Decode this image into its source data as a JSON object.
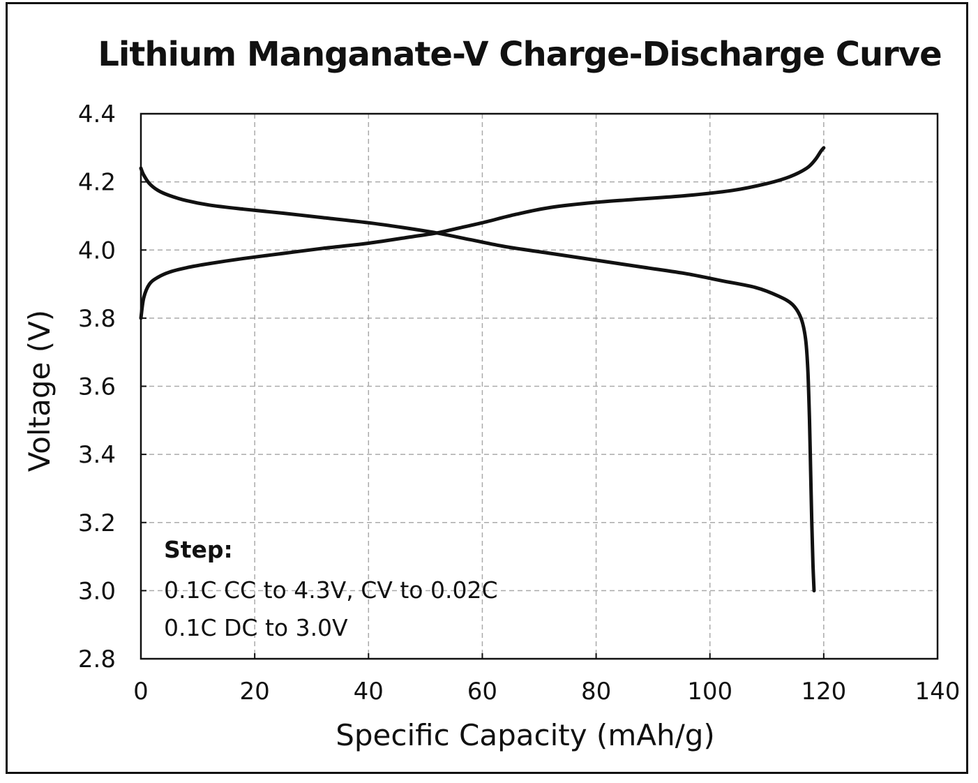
{
  "chart_data": {
    "type": "line",
    "title": "Lithium Manganate-V Charge-Discharge Curve",
    "xlabel": "Specific Capacity (mAh/g)",
    "ylabel": "Voltage (V)",
    "xlim": [
      0,
      140
    ],
    "ylim": [
      2.8,
      4.4
    ],
    "x_ticks": [
      "0",
      "20",
      "40",
      "60",
      "80",
      "100",
      "120",
      "140"
    ],
    "y_ticks": [
      "2.8",
      "3.0",
      "3.2",
      "3.4",
      "3.6",
      "3.8",
      "4.0",
      "4.2",
      "4.4"
    ],
    "grid": true,
    "grid_style": "dashed",
    "line_color": "#111111",
    "series": [
      {
        "x": [
          0,
          0.5,
          1.5,
          3,
          5,
          8,
          12,
          18,
          25,
          32,
          40,
          48,
          52,
          56,
          60,
          66,
          72,
          80,
          88,
          96,
          104,
          110,
          114,
          117,
          118.5,
          119.5,
          120
        ],
        "y": [
          3.8,
          3.86,
          3.9,
          3.92,
          3.935,
          3.948,
          3.96,
          3.975,
          3.99,
          4.005,
          4.02,
          4.04,
          4.05,
          4.065,
          4.08,
          4.105,
          4.125,
          4.14,
          4.15,
          4.16,
          4.175,
          4.195,
          4.215,
          4.24,
          4.265,
          4.29,
          4.3
        ]
      },
      {
        "x": [
          0,
          0.5,
          1.5,
          3,
          5,
          8,
          12,
          18,
          25,
          32,
          40,
          46,
          52,
          58,
          64,
          72,
          80,
          88,
          96,
          102,
          108,
          112,
          114.5,
          116,
          116.8,
          117.2,
          117.5,
          117.7,
          117.9,
          118.1,
          118.3
        ],
        "y": [
          4.24,
          4.22,
          4.195,
          4.175,
          4.16,
          4.145,
          4.132,
          4.12,
          4.108,
          4.095,
          4.08,
          4.066,
          4.05,
          4.03,
          4.01,
          3.99,
          3.97,
          3.95,
          3.93,
          3.91,
          3.89,
          3.865,
          3.84,
          3.8,
          3.74,
          3.65,
          3.5,
          3.35,
          3.2,
          3.08,
          3.0
        ]
      }
    ],
    "annotation": {
      "heading": "Step:",
      "lines": [
        "0.1C CC to 4.3V, CV to 0.02C",
        "0.1C DC to 3.0V"
      ]
    }
  }
}
